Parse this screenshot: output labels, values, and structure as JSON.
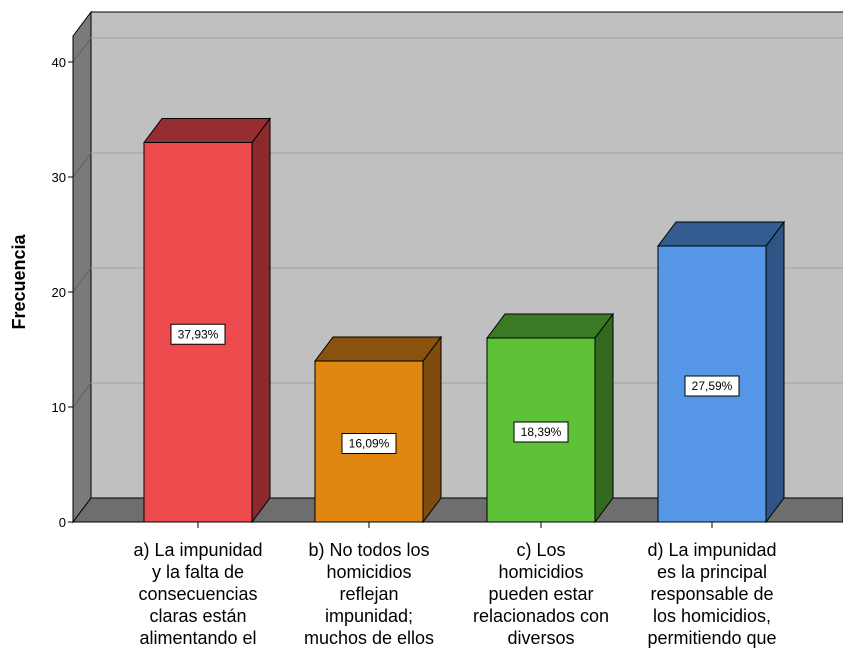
{
  "chart_data": {
    "type": "bar",
    "ylabel": "Frecuencia",
    "ylim": [
      0,
      40
    ],
    "yticks": [
      "0",
      "10",
      "20",
      "30",
      "40"
    ],
    "categories": [
      [
        "a) La impunidad",
        "y la falta de",
        "consecuencias",
        "claras están",
        "alimentando el"
      ],
      [
        "b) No todos los",
        "homicidios",
        "reflejan",
        "impunidad;",
        "muchos de ellos"
      ],
      [
        "c) Los",
        "homicidios",
        "pueden estar",
        "relacionados con",
        "diversos"
      ],
      [
        "d) La impunidad",
        "es la principal",
        "responsable de",
        "los homicidios,",
        "permitiendo que"
      ]
    ],
    "values": [
      33,
      14,
      16,
      24
    ],
    "data_labels": [
      "37,93%",
      "16,09%",
      "18,39%",
      "27,59%"
    ],
    "colors": [
      {
        "front": "#ee4b4e",
        "side": "#8a2a2c",
        "top": "#962d30"
      },
      {
        "front": "#e08712",
        "side": "#7e4c0c",
        "top": "#8a530d"
      },
      {
        "front": "#5ec239",
        "side": "#346a1f",
        "top": "#3b7a24"
      },
      {
        "front": "#5596e6",
        "side": "#2f5485",
        "top": "#345c90"
      }
    ],
    "grid": true,
    "background": "#c0c0c0",
    "gridline_color": "#a8a8a8",
    "floor_color": "#6e6e6e",
    "wall_color": "#7a7a7a"
  }
}
